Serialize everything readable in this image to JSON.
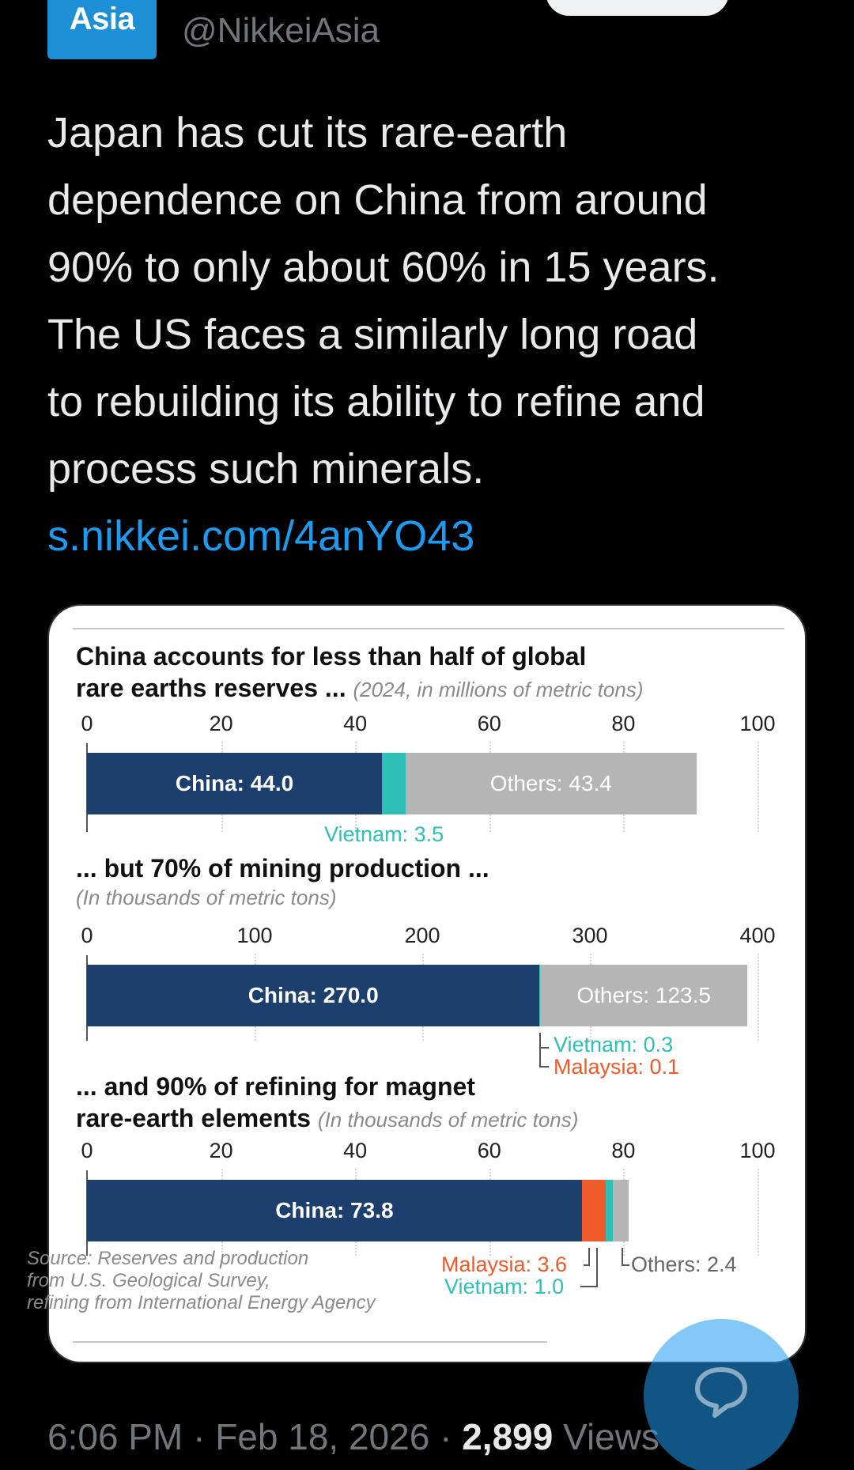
{
  "header": {
    "badge_text": "Asia",
    "handle": "@NikkeiAsia"
  },
  "tweet": {
    "text": "Japan has cut its rare-earth\ndependence on China from around\n90% to only about 60% in 15 years.\nThe US faces a similarly long road\nto rebuilding its ability to refine and\nprocess such minerals.",
    "link": "s.nikkei.com/4anYO43"
  },
  "chart_data": [
    {
      "type": "bar",
      "stacked": true,
      "title": "China accounts for less than half of global rare earths reserves ...",
      "subtitle": "(2024, in millions of metric tons)",
      "xlim": [
        0,
        100
      ],
      "ticks": [
        "0",
        "20",
        "40",
        "60",
        "80",
        "100"
      ],
      "series": [
        {
          "name": "China",
          "value": 44.0,
          "label": "China: 44.0",
          "color": "#1d3f6e"
        },
        {
          "name": "Vietnam",
          "value": 3.5,
          "label": "Vietnam: 3.5",
          "color": "#2ebfb6"
        },
        {
          "name": "Others",
          "value": 43.4,
          "label": "Others: 43.4",
          "color": "#b5b5b5"
        }
      ]
    },
    {
      "type": "bar",
      "stacked": true,
      "title": "... but 70% of mining production ...",
      "subtitle": "(In thousands of metric tons)",
      "xlim": [
        0,
        400
      ],
      "ticks": [
        "0",
        "100",
        "200",
        "300",
        "400"
      ],
      "series": [
        {
          "name": "China",
          "value": 270.0,
          "label": "China: 270.0",
          "color": "#1d3f6e"
        },
        {
          "name": "Vietnam",
          "value": 0.3,
          "label": "Vietnam: 0.3",
          "color": "#2ebfb6"
        },
        {
          "name": "Malaysia",
          "value": 0.1,
          "label": "Malaysia: 0.1",
          "color": "#f05a28"
        },
        {
          "name": "Others",
          "value": 123.5,
          "label": "Others: 123.5",
          "color": "#b5b5b5"
        }
      ]
    },
    {
      "type": "bar",
      "stacked": true,
      "title": "... and 90% of refining for magnet rare-earth elements",
      "subtitle": "(In thousands of metric tons)",
      "xlim": [
        0,
        100
      ],
      "ticks": [
        "0",
        "20",
        "40",
        "60",
        "80",
        "100"
      ],
      "series": [
        {
          "name": "China",
          "value": 73.8,
          "label": "China: 73.8",
          "color": "#1d3f6e"
        },
        {
          "name": "Malaysia",
          "value": 3.6,
          "label": "Malaysia: 3.6",
          "color": "#f05a28"
        },
        {
          "name": "Vietnam",
          "value": 1.0,
          "label": "Vietnam: 1.0",
          "color": "#2ebfb6"
        },
        {
          "name": "Others",
          "value": 2.4,
          "label": "Others: 2.4",
          "color": "#b5b5b5"
        }
      ]
    }
  ],
  "chart_titles": {
    "c1_line1": "China accounts for less than half of global",
    "c1_line2": "rare earths reserves ...",
    "c1_sub": "(2024, in millions of metric tons)",
    "c2_line1": "... but 70% of mining production ...",
    "c2_sub": "(In thousands of metric tons)",
    "c3_line1": "... and 90% of refining for magnet",
    "c3_line2": "rare-earth elements",
    "c3_sub": "(In thousands of metric tons)"
  },
  "source": "Source: Reserves and production\nfrom U.S. Geological Survey,\nrefining from International Energy Agency",
  "footer": {
    "time": "6:06 PM",
    "sep1": " · ",
    "date": "Feb 18, 2026",
    "sep2": " · ",
    "views_count": "2,899",
    "views_label": " Views"
  },
  "colors": {
    "accent": "#1d9bf0",
    "china": "#1d3f6e",
    "vietnam": "#2ebfb6",
    "malaysia": "#f05a28",
    "others": "#b5b5b5"
  },
  "icons": {
    "reply_fab": "comment-bubble-icon"
  }
}
